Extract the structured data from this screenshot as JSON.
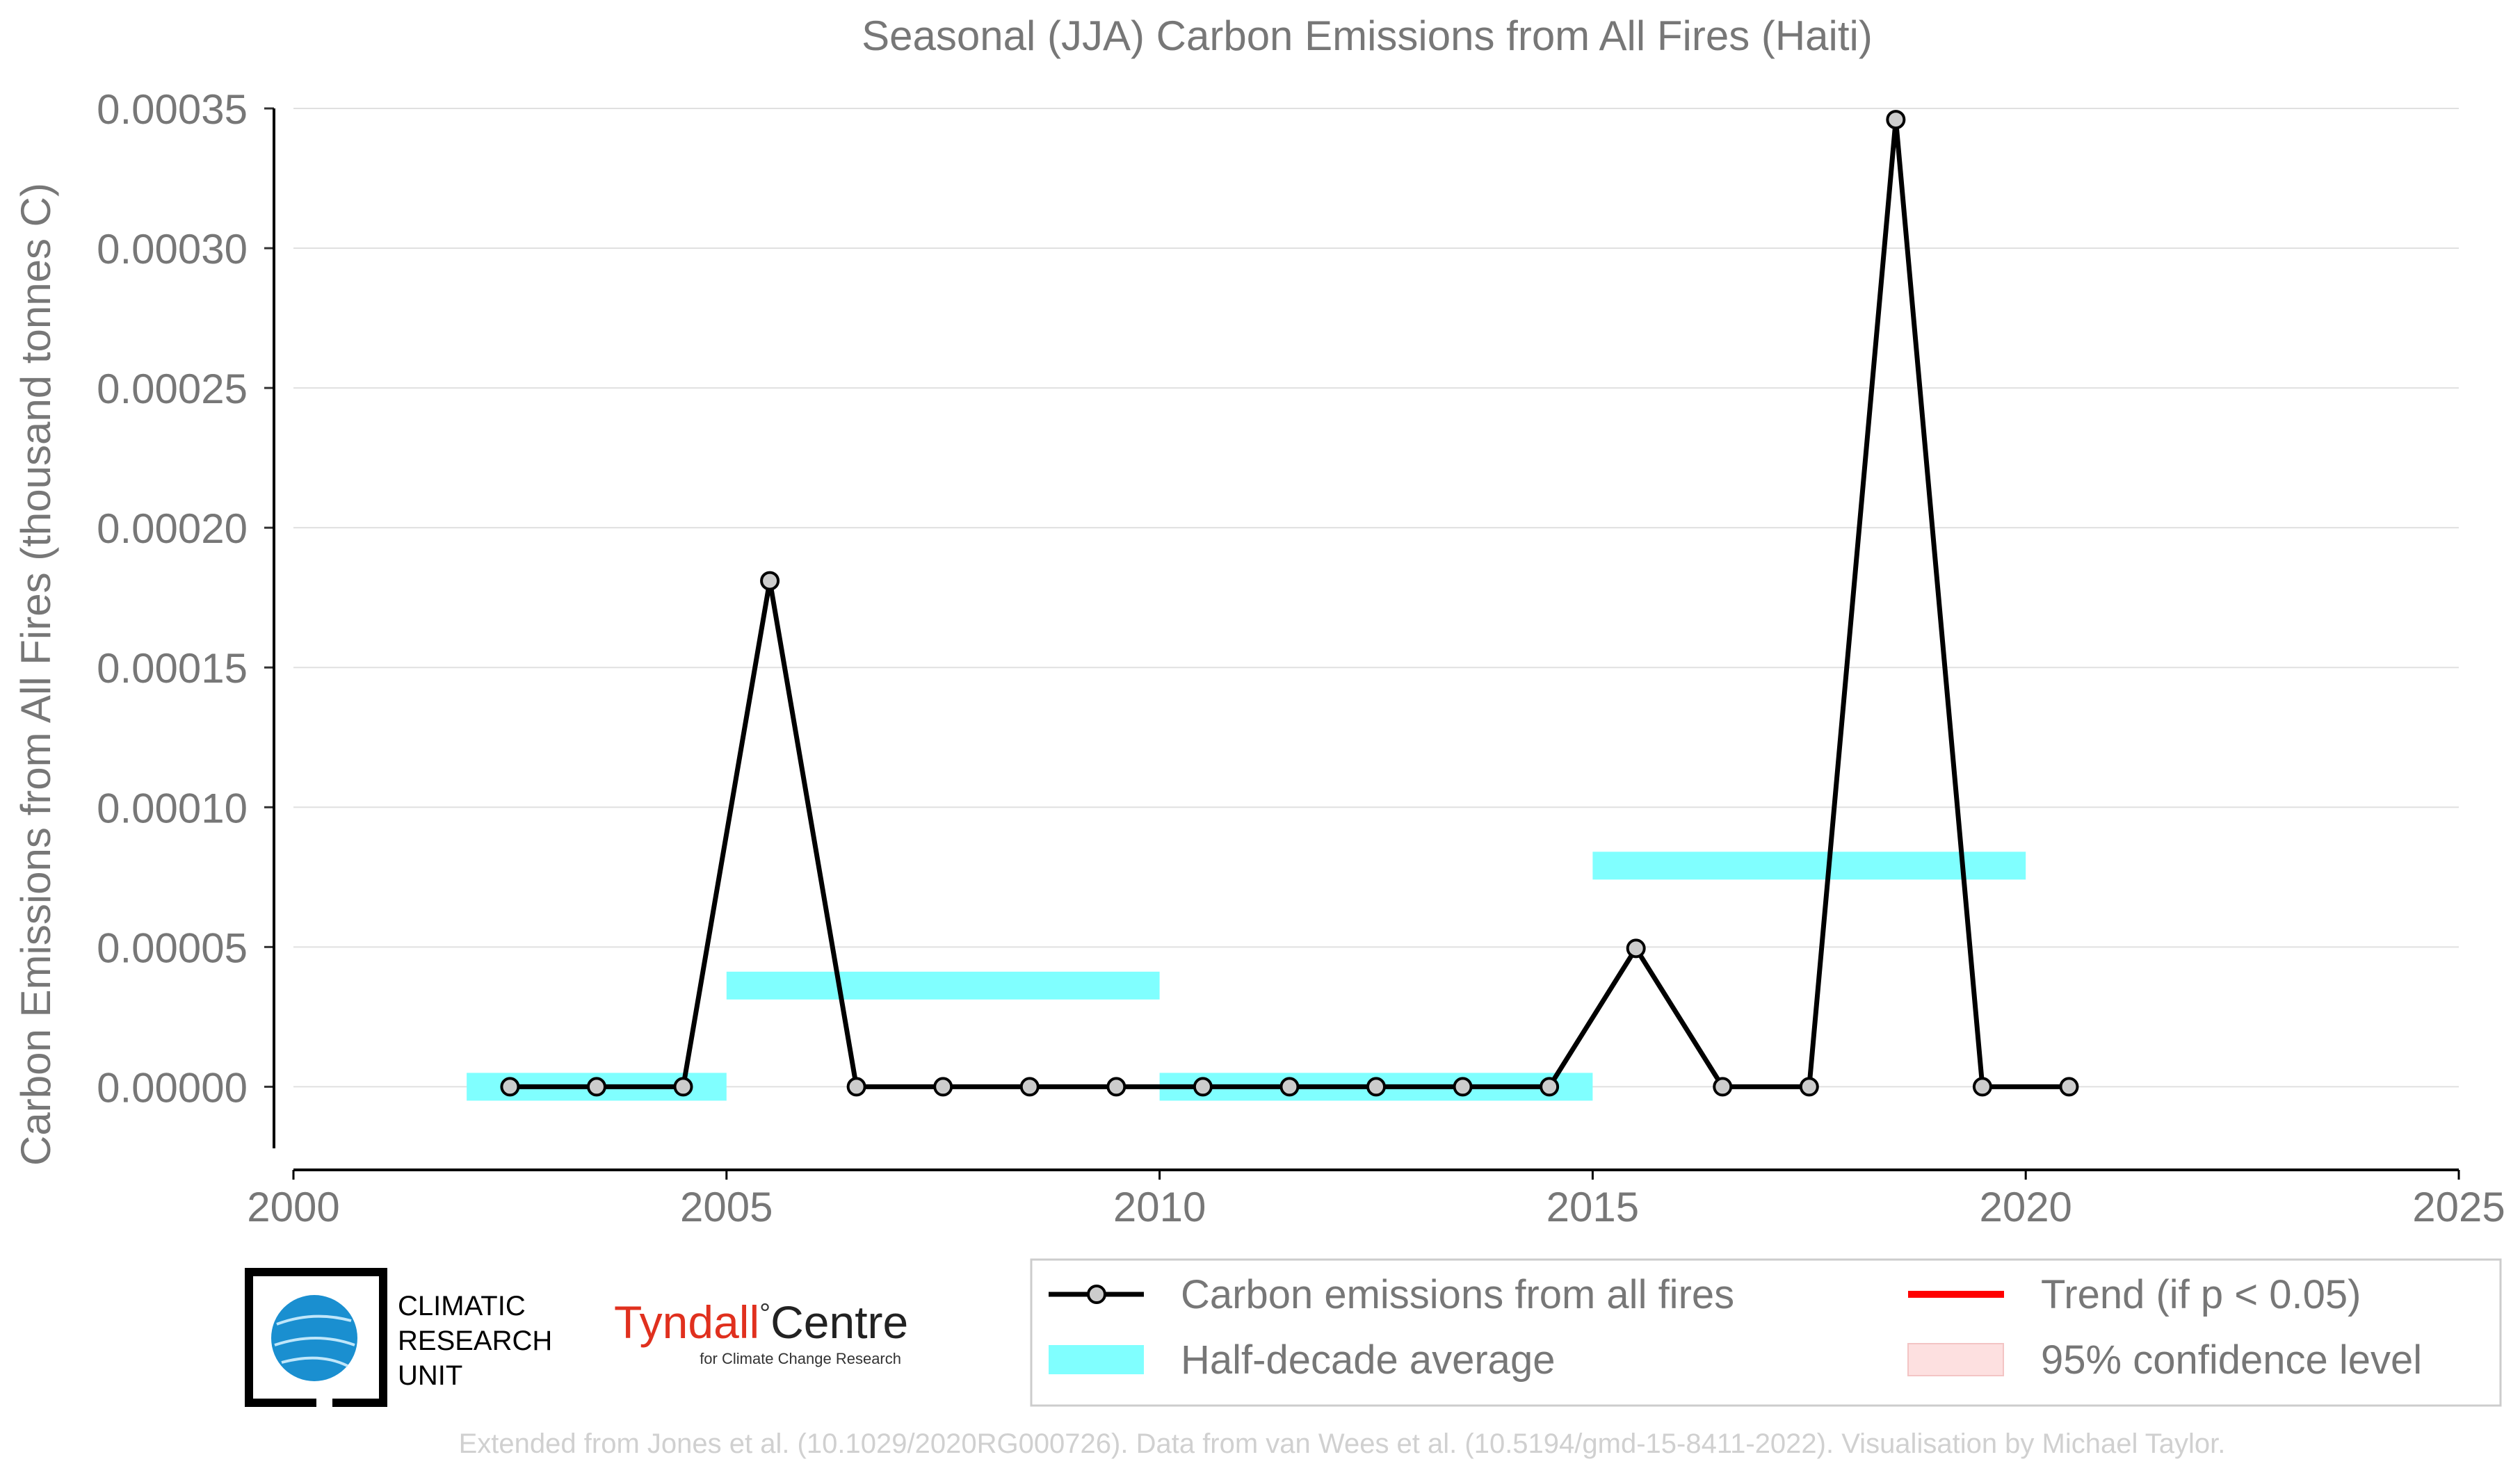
{
  "chart_data": {
    "type": "line",
    "title": "Seasonal (JJA) Carbon Emissions from All Fires (Haiti)",
    "xlabel": "",
    "ylabel": "Carbon Emissions from All Fires (thousand tonnes C)",
    "xlim": [
      2000,
      2025
    ],
    "ylim": [
      -2.8e-05,
      0.00035
    ],
    "x_ticks": [
      "2000",
      "2005",
      "2010",
      "2015",
      "2020",
      "2025"
    ],
    "y_ticks": [
      "0.00000",
      "0.00005",
      "0.00010",
      "0.00015",
      "0.00020",
      "0.00025",
      "0.00030",
      "0.00035"
    ],
    "grid": "horizontal",
    "series": [
      {
        "name": "Carbon emissions from all fires",
        "color": "#000000",
        "x": [
          2002.5,
          2003.5,
          2004.5,
          2005.5,
          2006.5,
          2007.5,
          2008.5,
          2009.5,
          2010.5,
          2011.5,
          2012.5,
          2013.5,
          2014.5,
          2015.5,
          2016.5,
          2017.5,
          2018.5,
          2019.5,
          2020.5
        ],
        "values": [
          0,
          0,
          0,
          0.000181,
          0,
          0,
          0,
          0,
          0,
          0,
          0,
          0,
          0,
          4.95e-05,
          0,
          0,
          0.000346,
          0,
          0
        ]
      }
    ],
    "half_decade_averages": [
      {
        "x0": 2002,
        "x1": 2005,
        "value": 0
      },
      {
        "x0": 2005,
        "x1": 2010,
        "value": 3.62e-05
      },
      {
        "x0": 2010,
        "x1": 2015,
        "value": 0
      },
      {
        "x0": 2015,
        "x1": 2020,
        "value": 7.91e-05
      }
    ],
    "legend": {
      "placement": "bottom-right",
      "entries": [
        {
          "label": "Carbon emissions from all fires",
          "color": "#000000",
          "kind": "line-marker"
        },
        {
          "label": "Trend (if p < 0.05)",
          "color": "#ff0000",
          "kind": "line"
        },
        {
          "label": "Half-decade average",
          "color": "#80ffff",
          "kind": "band"
        },
        {
          "label": "95% confidence level",
          "color": "#fde0e0",
          "kind": "patch"
        }
      ]
    },
    "colors": {
      "series": "#000000",
      "marker_fill": "#cccccc",
      "half_decade": "#80ffff",
      "trend": "#ff0000",
      "confidence": "#fde0e0",
      "text": "#777777",
      "grid": "#e0e0e0"
    }
  },
  "logos": {
    "cru": {
      "line1": "CLIMATIC",
      "line2": "RESEARCH",
      "line3": "UNIT",
      "globe_color": "#1a8fd0"
    },
    "tyndall": {
      "name_part1": "Tyndall",
      "degree": "°",
      "name_part2": "Centre",
      "subtitle": "for Climate Change Research",
      "color_red": "#e0301e"
    }
  },
  "credits": "Extended from Jones et al. (10.1029/2020RG000726). Data from van Wees et al. (10.5194/gmd-15-8411-2022). Visualisation by Michael Taylor."
}
